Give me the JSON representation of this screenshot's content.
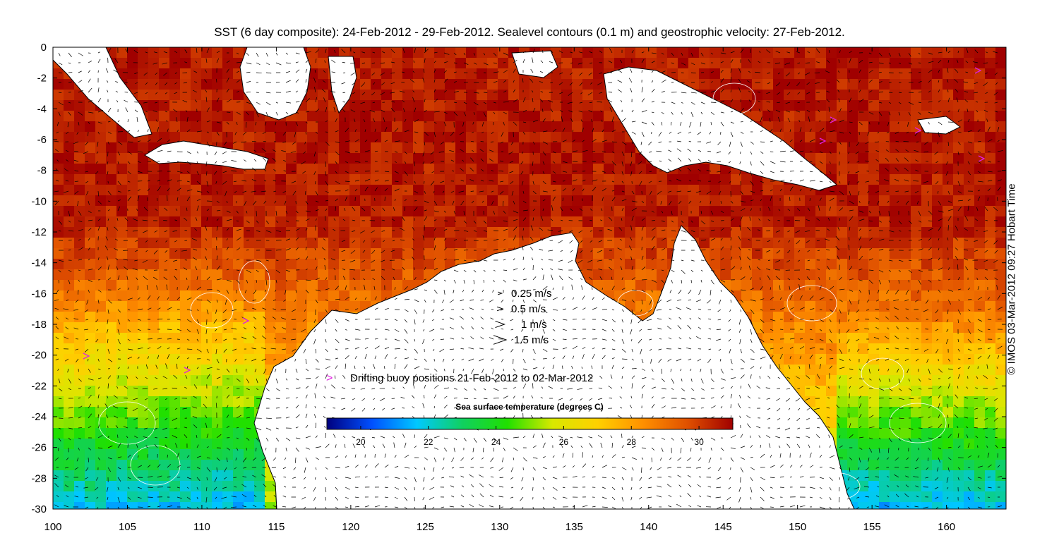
{
  "title": "SST (6 day composite): 24-Feb-2012 - 29-Feb-2012. Sealevel contours (0.1 m) and geostrophic velocity: 27-Feb-2012.",
  "credit": "© IMOS 03-Mar-2012 09:27 Hobart Time",
  "axes": {
    "x_ticks": [
      "100",
      "105",
      "110",
      "115",
      "120",
      "125",
      "130",
      "135",
      "140",
      "145",
      "150",
      "155",
      "160"
    ],
    "y_ticks": [
      "0",
      "-2",
      "-4",
      "-6",
      "-8",
      "-10",
      "-12",
      "-14",
      "-16",
      "-18",
      "-20",
      "-22",
      "-24",
      "-26",
      "-28",
      "-30"
    ],
    "xlim": [
      100,
      164
    ],
    "ylim": [
      -30,
      0
    ]
  },
  "velocity_legend": [
    {
      "label": "0.25 m/s",
      "speed": 0.25
    },
    {
      "label": "0.5 m/s",
      "speed": 0.5
    },
    {
      "label": "1 m/s",
      "speed": 1
    },
    {
      "label": "1.5 m/s",
      "speed": 1.5
    }
  ],
  "buoy_legend": {
    "label": "Drifting buoy positions 21-Feb-2012 to 02-Mar-2012",
    "marker": ">",
    "color": "#e020e0"
  },
  "colorbar": {
    "title": "Sea surface temperature (degrees C)",
    "ticks": [
      "20",
      "22",
      "24",
      "26",
      "28",
      "30"
    ],
    "range": [
      19,
      31
    ],
    "colors": [
      "#00007f",
      "#0050ff",
      "#00c8ff",
      "#10d060",
      "#20e000",
      "#d8e800",
      "#ffd000",
      "#ff9000",
      "#e05000",
      "#a00000"
    ]
  },
  "colors": {
    "land": "#ffffff",
    "coastline": "#000000",
    "contours": "#ffffff",
    "velocity_arrows": "#000000"
  }
}
